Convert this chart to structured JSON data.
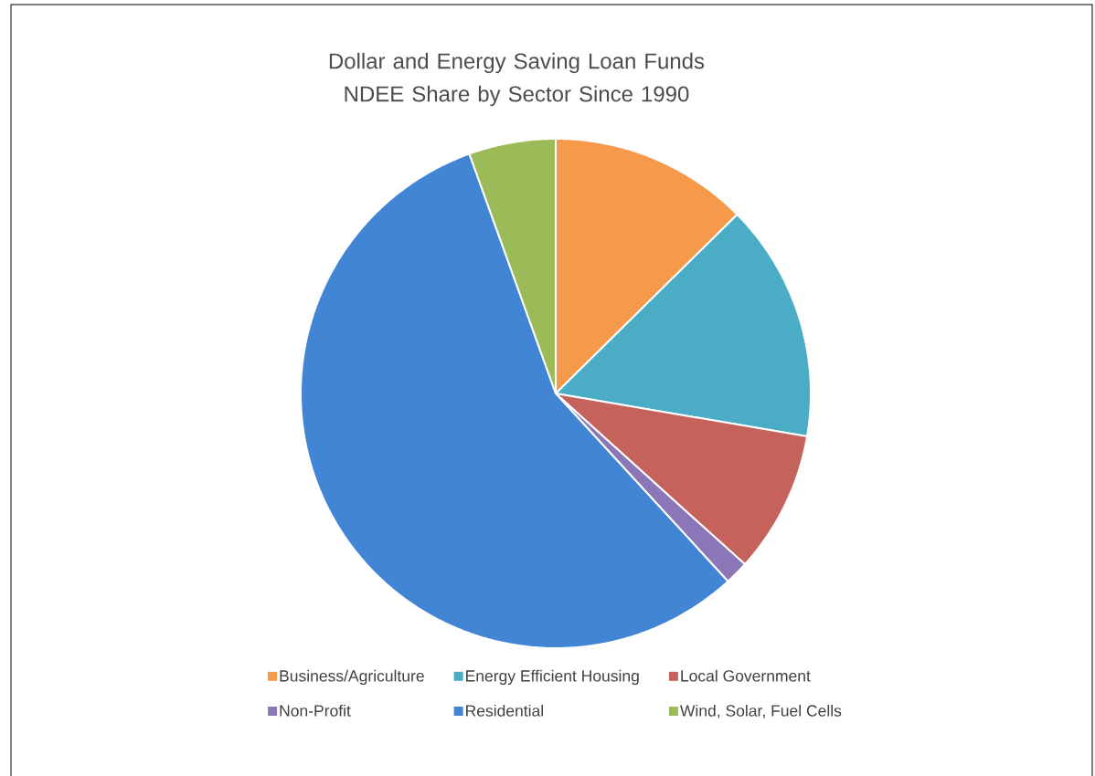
{
  "chart_data": {
    "type": "pie",
    "title": "Dollar and Energy Saving Loan Funds NDEE Share by Sector Since 1990",
    "categories": [
      "Business/Agriculture",
      "Energy Efficient Housing",
      "Local Government",
      "Non-Profit",
      "Residential",
      "Wind, Solar, Fuel Cells"
    ],
    "values": [
      12.6,
      15.1,
      9.0,
      1.5,
      56.3,
      5.5
    ],
    "colors": [
      "#f59a4b",
      "#4bacc6",
      "#c5625c",
      "#8b77b8",
      "#4285d4",
      "#9bbb59"
    ],
    "legend": "bottom"
  }
}
